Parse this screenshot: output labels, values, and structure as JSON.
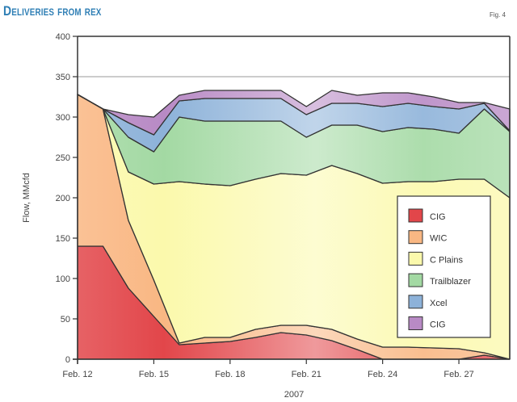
{
  "title": "Deliveries from rex",
  "figure_label": "Fig. 4",
  "chart_data": {
    "type": "area",
    "stacked": true,
    "title": "Deliveries from rex",
    "xlabel": "2007",
    "ylabel": "Flow, MMcfd",
    "ylim": [
      0,
      400
    ],
    "yticks": [
      0,
      50,
      100,
      150,
      200,
      250,
      300,
      350,
      400
    ],
    "xtick_labels": [
      "Feb. 12",
      "Feb. 15",
      "Feb. 18",
      "Feb. 21",
      "Feb. 24",
      "Feb. 27"
    ],
    "xtick_dates": [
      "2007-02-12",
      "2007-02-15",
      "2007-02-18",
      "2007-02-21",
      "2007-02-24",
      "2007-02-27"
    ],
    "x": [
      "2007-02-12",
      "2007-02-13",
      "2007-02-14",
      "2007-02-15",
      "2007-02-16",
      "2007-02-17",
      "2007-02-18",
      "2007-02-19",
      "2007-02-20",
      "2007-02-21",
      "2007-02-22",
      "2007-02-23",
      "2007-02-24",
      "2007-02-25",
      "2007-02-26",
      "2007-02-27",
      "2007-02-28",
      "2007-03-01"
    ],
    "grid": "horizontal line at 350",
    "legend_position": "right-center",
    "series": [
      {
        "name": "CIG",
        "color": "#e2464a",
        "values": [
          140,
          140,
          88,
          53,
          18,
          20,
          22,
          27,
          33,
          30,
          23,
          12,
          0,
          0,
          0,
          0,
          5,
          0
        ]
      },
      {
        "name": "WIC",
        "color": "#f9b783",
        "values": [
          188,
          170,
          84,
          45,
          2,
          7,
          5,
          10,
          9,
          12,
          14,
          13,
          15,
          15,
          14,
          13,
          3,
          0
        ]
      },
      {
        "name": "C Plains",
        "color": "#fbf9ac",
        "values": [
          0,
          0,
          60,
          119,
          200,
          190,
          188,
          186,
          188,
          186,
          203,
          205,
          203,
          205,
          206,
          210,
          215,
          200
        ]
      },
      {
        "name": "Trailblazer",
        "color": "#a3d9a3",
        "values": [
          0,
          0,
          43,
          40,
          80,
          78,
          80,
          72,
          65,
          47,
          50,
          60,
          64,
          67,
          65,
          57,
          87,
          82
        ]
      },
      {
        "name": "Xcel",
        "color": "#8db2d9",
        "values": [
          0,
          0,
          18,
          21,
          20,
          28,
          28,
          28,
          28,
          28,
          27,
          27,
          31,
          30,
          28,
          30,
          7,
          1
        ]
      },
      {
        "name": "CIG",
        "color": "#b88ac5",
        "values": [
          0,
          0,
          10,
          22,
          7,
          10,
          10,
          10,
          10,
          10,
          16,
          10,
          17,
          13,
          12,
          8,
          1,
          27
        ]
      }
    ]
  }
}
